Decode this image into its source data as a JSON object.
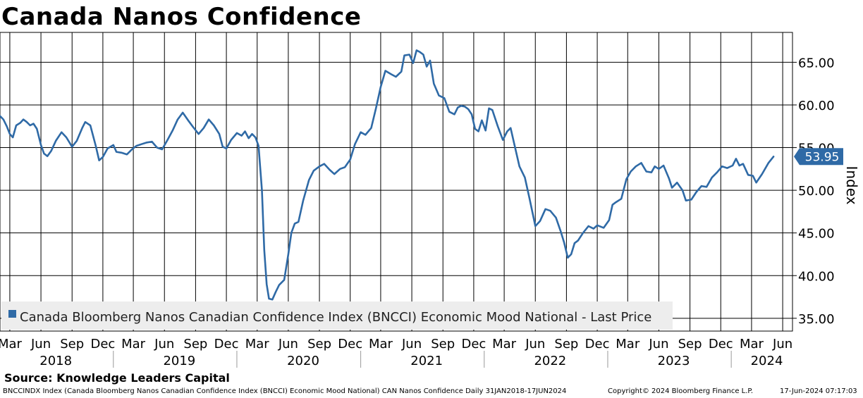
{
  "title": "Canada Nanos Confidence",
  "source": "Source: Knowledge Leaders Capital",
  "footer": {
    "left": "BNCCINDX Index (Canada Bloomberg Nanos Canadian Confidence Index (BNCCI) Economic Mood National) CAN Nanos Confidence  Daily 31JAN2018-17JUN2024",
    "copyright": "Copyright© 2024 Bloomberg Finance L.P.",
    "timestamp": "17-Jun-2024 07:17:03"
  },
  "colors": {
    "series": "#2f6aa6",
    "grid": "#000000",
    "legend_bg": "#ededed"
  },
  "chart_data": {
    "type": "line",
    "title": "Canada Nanos Confidence",
    "ylabel": "Index",
    "ylim": [
      33.5,
      68.5
    ],
    "xlim": [
      "2018-01-31",
      "2024-06-30"
    ],
    "grid": true,
    "legend_position": "bottom-left",
    "y_ticks": [
      "35.00",
      "40.00",
      "45.00",
      "50.00",
      "55.00",
      "60.00",
      "65.00"
    ],
    "x_month_ticks": [
      {
        "date": "2018-03-01",
        "label": "Mar"
      },
      {
        "date": "2018-06-01",
        "label": "Jun"
      },
      {
        "date": "2018-09-01",
        "label": "Sep"
      },
      {
        "date": "2018-12-01",
        "label": "Dec"
      },
      {
        "date": "2019-03-01",
        "label": "Mar"
      },
      {
        "date": "2019-06-01",
        "label": "Jun"
      },
      {
        "date": "2019-09-01",
        "label": "Sep"
      },
      {
        "date": "2019-12-01",
        "label": "Dec"
      },
      {
        "date": "2020-03-01",
        "label": "Mar"
      },
      {
        "date": "2020-06-01",
        "label": "Jun"
      },
      {
        "date": "2020-09-01",
        "label": "Sep"
      },
      {
        "date": "2020-12-01",
        "label": "Dec"
      },
      {
        "date": "2021-03-01",
        "label": "Mar"
      },
      {
        "date": "2021-06-01",
        "label": "Jun"
      },
      {
        "date": "2021-09-01",
        "label": "Sep"
      },
      {
        "date": "2021-12-01",
        "label": "Dec"
      },
      {
        "date": "2022-03-01",
        "label": "Mar"
      },
      {
        "date": "2022-06-01",
        "label": "Jun"
      },
      {
        "date": "2022-09-01",
        "label": "Sep"
      },
      {
        "date": "2022-12-01",
        "label": "Dec"
      },
      {
        "date": "2023-03-01",
        "label": "Mar"
      },
      {
        "date": "2023-06-01",
        "label": "Jun"
      },
      {
        "date": "2023-09-01",
        "label": "Sep"
      },
      {
        "date": "2023-12-01",
        "label": "Dec"
      },
      {
        "date": "2024-03-01",
        "label": "Mar"
      },
      {
        "date": "2024-06-01",
        "label": "Jun"
      }
    ],
    "x_year_labels": [
      {
        "date": "2018-07-15",
        "label": "2018"
      },
      {
        "date": "2019-07-15",
        "label": "2019"
      },
      {
        "date": "2020-07-15",
        "label": "2020"
      },
      {
        "date": "2021-07-15",
        "label": "2021"
      },
      {
        "date": "2022-07-15",
        "label": "2022"
      },
      {
        "date": "2023-07-15",
        "label": "2023"
      },
      {
        "date": "2024-04-15",
        "label": "2024"
      }
    ],
    "year_boundaries": [
      "2019-01-01",
      "2020-01-01",
      "2021-01-01",
      "2022-01-01",
      "2023-01-01",
      "2024-01-01"
    ],
    "last_value_label": "53.95",
    "series": [
      {
        "name": "Canada Bloomberg Nanos Canadian Confidence Index (BNCCI) Economic Mood National - Last Price",
        "points": [
          [
            "2018-01-31",
            58.7
          ],
          [
            "2018-02-10",
            58.3
          ],
          [
            "2018-02-20",
            57.5
          ],
          [
            "2018-03-01",
            56.6
          ],
          [
            "2018-03-10",
            56.2
          ],
          [
            "2018-03-20",
            57.6
          ],
          [
            "2018-04-01",
            57.9
          ],
          [
            "2018-04-10",
            58.3
          ],
          [
            "2018-04-20",
            58.0
          ],
          [
            "2018-04-30",
            57.6
          ],
          [
            "2018-05-10",
            57.8
          ],
          [
            "2018-05-20",
            57.2
          ],
          [
            "2018-06-01",
            55.3
          ],
          [
            "2018-06-10",
            54.3
          ],
          [
            "2018-06-20",
            54.0
          ],
          [
            "2018-07-01",
            54.6
          ],
          [
            "2018-07-15",
            55.8
          ],
          [
            "2018-08-01",
            56.8
          ],
          [
            "2018-08-15",
            56.2
          ],
          [
            "2018-09-01",
            55.1
          ],
          [
            "2018-09-15",
            55.8
          ],
          [
            "2018-10-01",
            57.3
          ],
          [
            "2018-10-10",
            58.0
          ],
          [
            "2018-10-25",
            57.6
          ],
          [
            "2018-11-10",
            55.2
          ],
          [
            "2018-11-20",
            53.5
          ],
          [
            "2018-12-01",
            53.9
          ],
          [
            "2018-12-15",
            54.9
          ],
          [
            "2019-01-01",
            55.3
          ],
          [
            "2019-01-10",
            54.5
          ],
          [
            "2019-01-25",
            54.4
          ],
          [
            "2019-02-10",
            54.2
          ],
          [
            "2019-02-25",
            54.8
          ],
          [
            "2019-03-10",
            55.2
          ],
          [
            "2019-03-25",
            55.4
          ],
          [
            "2019-04-10",
            55.6
          ],
          [
            "2019-04-25",
            55.7
          ],
          [
            "2019-05-10",
            55.0
          ],
          [
            "2019-05-25",
            54.8
          ],
          [
            "2019-06-10",
            55.9
          ],
          [
            "2019-06-25",
            57.0
          ],
          [
            "2019-07-10",
            58.3
          ],
          [
            "2019-07-25",
            59.1
          ],
          [
            "2019-08-10",
            58.2
          ],
          [
            "2019-08-25",
            57.4
          ],
          [
            "2019-09-10",
            56.6
          ],
          [
            "2019-09-25",
            57.3
          ],
          [
            "2019-10-10",
            58.3
          ],
          [
            "2019-10-25",
            57.6
          ],
          [
            "2019-11-10",
            56.6
          ],
          [
            "2019-11-20",
            55.1
          ],
          [
            "2019-12-01",
            54.9
          ],
          [
            "2019-12-15",
            55.9
          ],
          [
            "2020-01-01",
            56.7
          ],
          [
            "2020-01-15",
            56.4
          ],
          [
            "2020-01-25",
            56.9
          ],
          [
            "2020-02-05",
            56.1
          ],
          [
            "2020-02-15",
            56.6
          ],
          [
            "2020-02-25",
            56.2
          ],
          [
            "2020-03-05",
            55.2
          ],
          [
            "2020-03-15",
            50.0
          ],
          [
            "2020-03-22",
            43.0
          ],
          [
            "2020-03-29",
            39.0
          ],
          [
            "2020-04-05",
            37.3
          ],
          [
            "2020-04-15",
            37.2
          ],
          [
            "2020-04-25",
            38.1
          ],
          [
            "2020-05-05",
            38.9
          ],
          [
            "2020-05-20",
            39.5
          ],
          [
            "2020-06-01",
            42.5
          ],
          [
            "2020-06-10",
            45.0
          ],
          [
            "2020-06-20",
            46.1
          ],
          [
            "2020-07-01",
            46.3
          ],
          [
            "2020-07-15",
            48.8
          ],
          [
            "2020-08-01",
            51.2
          ],
          [
            "2020-08-15",
            52.3
          ],
          [
            "2020-09-01",
            52.8
          ],
          [
            "2020-09-15",
            53.1
          ],
          [
            "2020-10-01",
            52.4
          ],
          [
            "2020-10-15",
            51.9
          ],
          [
            "2020-11-01",
            52.5
          ],
          [
            "2020-11-15",
            52.7
          ],
          [
            "2020-12-01",
            53.6
          ],
          [
            "2020-12-15",
            55.4
          ],
          [
            "2021-01-01",
            56.8
          ],
          [
            "2021-01-15",
            56.5
          ],
          [
            "2021-02-01",
            57.3
          ],
          [
            "2021-02-15",
            59.6
          ],
          [
            "2021-03-01",
            62.1
          ],
          [
            "2021-03-15",
            64.0
          ],
          [
            "2021-04-01",
            63.6
          ],
          [
            "2021-04-15",
            63.3
          ],
          [
            "2021-05-01",
            63.9
          ],
          [
            "2021-05-10",
            65.8
          ],
          [
            "2021-05-25",
            65.9
          ],
          [
            "2021-06-05",
            64.9
          ],
          [
            "2021-06-15",
            66.4
          ],
          [
            "2021-06-25",
            66.2
          ],
          [
            "2021-07-05",
            65.9
          ],
          [
            "2021-07-15",
            64.5
          ],
          [
            "2021-07-25",
            65.2
          ],
          [
            "2021-08-05",
            62.5
          ],
          [
            "2021-08-20",
            61.1
          ],
          [
            "2021-09-05",
            60.8
          ],
          [
            "2021-09-20",
            59.2
          ],
          [
            "2021-10-05",
            58.9
          ],
          [
            "2021-10-15",
            59.7
          ],
          [
            "2021-10-25",
            59.9
          ],
          [
            "2021-11-05",
            59.8
          ],
          [
            "2021-11-15",
            59.5
          ],
          [
            "2021-11-25",
            58.9
          ],
          [
            "2021-12-05",
            57.2
          ],
          [
            "2021-12-15",
            56.9
          ],
          [
            "2021-12-25",
            58.2
          ],
          [
            "2022-01-05",
            57.0
          ],
          [
            "2022-01-15",
            59.6
          ],
          [
            "2022-01-25",
            59.4
          ],
          [
            "2022-02-10",
            57.5
          ],
          [
            "2022-02-25",
            55.9
          ],
          [
            "2022-03-10",
            56.9
          ],
          [
            "2022-03-20",
            57.3
          ],
          [
            "2022-04-01",
            55.2
          ],
          [
            "2022-04-15",
            52.8
          ],
          [
            "2022-05-01",
            51.5
          ],
          [
            "2022-05-15",
            49.0
          ],
          [
            "2022-06-01",
            45.8
          ],
          [
            "2022-06-15",
            46.4
          ],
          [
            "2022-07-01",
            47.8
          ],
          [
            "2022-07-15",
            47.6
          ],
          [
            "2022-08-01",
            46.8
          ],
          [
            "2022-08-15",
            45.2
          ],
          [
            "2022-08-25",
            43.9
          ],
          [
            "2022-09-05",
            42.1
          ],
          [
            "2022-09-15",
            42.5
          ],
          [
            "2022-09-25",
            43.8
          ],
          [
            "2022-10-05",
            44.1
          ],
          [
            "2022-10-20",
            45.0
          ],
          [
            "2022-11-05",
            45.8
          ],
          [
            "2022-11-20",
            45.5
          ],
          [
            "2022-12-01",
            45.9
          ],
          [
            "2022-12-20",
            45.6
          ],
          [
            "2023-01-05",
            46.5
          ],
          [
            "2023-01-15",
            48.3
          ],
          [
            "2023-01-25",
            48.6
          ],
          [
            "2023-02-10",
            49.0
          ],
          [
            "2023-02-25",
            51.3
          ],
          [
            "2023-03-10",
            52.2
          ],
          [
            "2023-03-25",
            52.8
          ],
          [
            "2023-04-10",
            53.2
          ],
          [
            "2023-04-25",
            52.2
          ],
          [
            "2023-05-10",
            52.1
          ],
          [
            "2023-05-20",
            52.8
          ],
          [
            "2023-06-01",
            52.5
          ],
          [
            "2023-06-15",
            52.9
          ],
          [
            "2023-07-01",
            51.4
          ],
          [
            "2023-07-10",
            50.3
          ],
          [
            "2023-07-25",
            50.9
          ],
          [
            "2023-08-10",
            50.0
          ],
          [
            "2023-08-20",
            48.8
          ],
          [
            "2023-09-05",
            48.9
          ],
          [
            "2023-09-20",
            49.8
          ],
          [
            "2023-10-05",
            50.5
          ],
          [
            "2023-10-20",
            50.4
          ],
          [
            "2023-11-05",
            51.5
          ],
          [
            "2023-11-20",
            52.1
          ],
          [
            "2023-12-05",
            52.8
          ],
          [
            "2023-12-20",
            52.6
          ],
          [
            "2024-01-05",
            52.9
          ],
          [
            "2024-01-15",
            53.7
          ],
          [
            "2024-01-25",
            52.9
          ],
          [
            "2024-02-05",
            53.1
          ],
          [
            "2024-02-20",
            51.8
          ],
          [
            "2024-03-05",
            51.7
          ],
          [
            "2024-03-15",
            50.9
          ],
          [
            "2024-04-01",
            51.9
          ],
          [
            "2024-04-20",
            53.2
          ],
          [
            "2024-05-05",
            53.95
          ]
        ]
      }
    ]
  }
}
